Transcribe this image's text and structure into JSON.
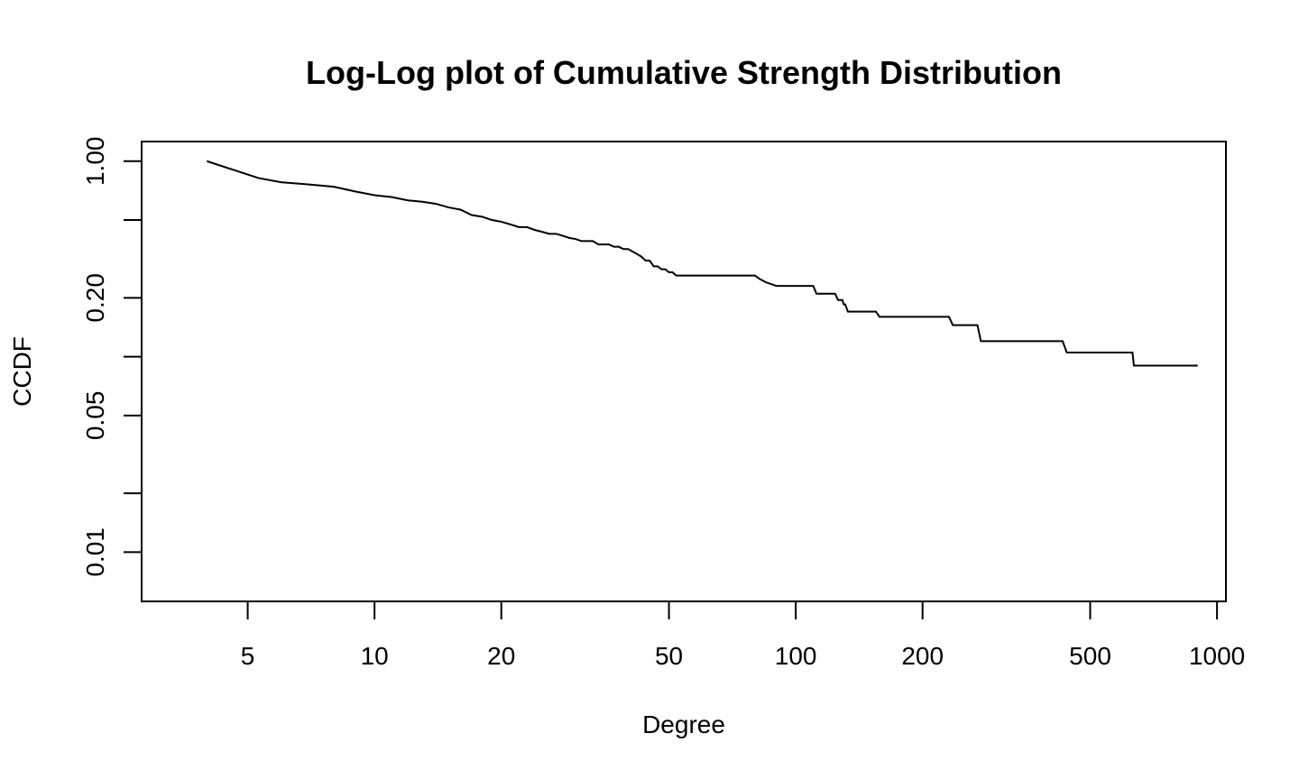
{
  "chart_data": {
    "type": "line",
    "title": "Log-Log plot of Cumulative Strength Distribution",
    "xlabel": "Degree",
    "ylabel": "CCDF",
    "xscale": "log",
    "yscale": "log",
    "xlim": [
      2.8,
      1050
    ],
    "ylim": [
      0.0056,
      1.26
    ],
    "grid": false,
    "legend": "none",
    "x_ticks": [
      5,
      10,
      20,
      50,
      100,
      200,
      500,
      1000
    ],
    "x_tick_labels": [
      "5",
      "10",
      "20",
      "50",
      "100",
      "200",
      "500",
      "1000"
    ],
    "y_ticks": [
      0.01,
      0.02,
      0.05,
      0.1,
      0.2,
      0.5,
      1.0
    ],
    "y_tick_labels": [
      "0.01",
      "",
      "0.05",
      "",
      "0.20",
      "",
      "1.00"
    ],
    "series": [
      {
        "name": "CCDF",
        "x": [
          4,
          5.3,
          6,
          7,
          8,
          9,
          10,
          11,
          12,
          13,
          14,
          15,
          16,
          17,
          18,
          19,
          20,
          21,
          22,
          23,
          24,
          25,
          26,
          27,
          28,
          29,
          30,
          31,
          32,
          33,
          34,
          35,
          36,
          37,
          38,
          39,
          40,
          41,
          42,
          43,
          44,
          45,
          46,
          47,
          48,
          49,
          50,
          51,
          52,
          53,
          54,
          55,
          56,
          80,
          82,
          85,
          90,
          95,
          110,
          111,
          112,
          113,
          115,
          124,
          126,
          129,
          130,
          131,
          133,
          135,
          155,
          158,
          162,
          231,
          236,
          240,
          270,
          275,
          280,
          430,
          440,
          460,
          630,
          635,
          900
        ],
        "y": [
          1.0,
          0.82,
          0.78,
          0.76,
          0.74,
          0.7,
          0.67,
          0.655,
          0.63,
          0.62,
          0.605,
          0.58,
          0.565,
          0.53,
          0.52,
          0.5,
          0.49,
          0.475,
          0.46,
          0.46,
          0.445,
          0.435,
          0.425,
          0.425,
          0.415,
          0.405,
          0.4,
          0.39,
          0.39,
          0.39,
          0.375,
          0.375,
          0.375,
          0.365,
          0.365,
          0.355,
          0.355,
          0.345,
          0.335,
          0.325,
          0.31,
          0.31,
          0.29,
          0.29,
          0.28,
          0.28,
          0.27,
          0.27,
          0.26,
          0.26,
          0.26,
          0.26,
          0.26,
          0.26,
          0.25,
          0.24,
          0.23,
          0.23,
          0.23,
          0.22,
          0.21,
          0.21,
          0.21,
          0.21,
          0.195,
          0.195,
          0.185,
          0.185,
          0.17,
          0.17,
          0.17,
          0.16,
          0.16,
          0.16,
          0.145,
          0.145,
          0.145,
          0.12,
          0.12,
          0.12,
          0.105,
          0.105,
          0.105,
          0.09,
          0.09
        ]
      }
    ]
  }
}
